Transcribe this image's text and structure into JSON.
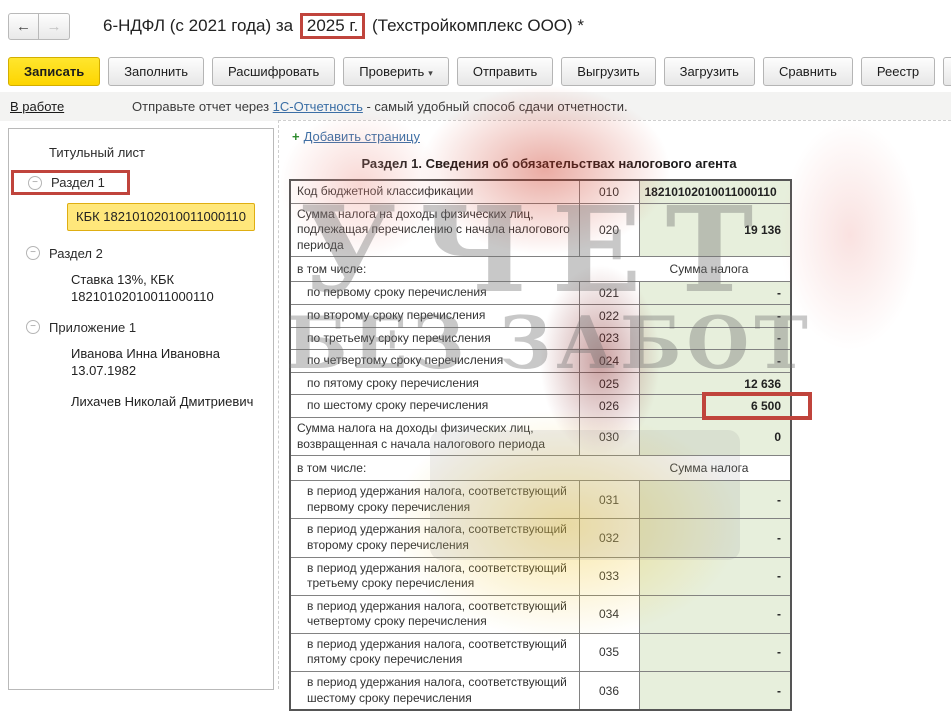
{
  "header": {
    "back_arrow": "←",
    "forward_arrow": "→",
    "title_prefix": "6-НДФЛ (с 2021 года) за",
    "title_year": "2025 г.",
    "title_suffix": "(Техстройкомплекс ООО) *"
  },
  "toolbar": {
    "buttons": [
      {
        "name": "save",
        "label": "Записать",
        "style": "primary"
      },
      {
        "name": "fill",
        "label": "Заполнить"
      },
      {
        "name": "decode",
        "label": "Расшифровать"
      },
      {
        "name": "check",
        "label": "Проверить",
        "dropdown": true
      },
      {
        "name": "send",
        "label": "Отправить"
      },
      {
        "name": "export",
        "label": "Выгрузить"
      },
      {
        "name": "import",
        "label": "Загрузить"
      },
      {
        "name": "compare",
        "label": "Сравнить"
      },
      {
        "name": "register",
        "label": "Реестр"
      },
      {
        "name": "print",
        "icon": "printer-icon"
      }
    ]
  },
  "status_bar": {
    "state_link": "В работе",
    "message_prefix": "Отправьте отчет через ",
    "message_link": "1С-Отчетность",
    "message_suffix": " - самый удобный способ сдачи отчетности."
  },
  "sidebar": {
    "items": [
      {
        "kind": "root",
        "name": "title-page",
        "label": "Титульный лист",
        "toggle": false
      },
      {
        "kind": "root",
        "name": "section-1",
        "label": "Раздел 1",
        "toggle": true,
        "annotated": true
      },
      {
        "kind": "child",
        "name": "kbk-1",
        "lines": [
          "КБК 18210102010011000110"
        ],
        "selected": true
      },
      {
        "kind": "root",
        "name": "section-2",
        "label": "Раздел 2",
        "toggle": true
      },
      {
        "kind": "child",
        "name": "rate-13",
        "lines": [
          "Ставка 13%, КБК",
          "18210102010011000110"
        ]
      },
      {
        "kind": "root",
        "name": "appendix-1",
        "label": "Приложение 1",
        "toggle": true
      },
      {
        "kind": "child",
        "name": "person-1",
        "lines": [
          "Иванова Инна Ивановна",
          "13.07.1982"
        ]
      },
      {
        "kind": "child",
        "name": "person-2",
        "lines": [
          "Лихачев Николай Дмитриевич"
        ]
      }
    ],
    "toggle_glyph": "−"
  },
  "main": {
    "add_page_plus": "+",
    "add_page_label": "Добавить страницу",
    "section_title": "Раздел 1. Сведения об обязательствах налогового агента",
    "table": {
      "sum_header": "Сумма налога",
      "rows": [
        {
          "type": "data",
          "label": "Код бюджетной классификации",
          "code": "010",
          "value": "18210102010011000110",
          "value_align": "left"
        },
        {
          "type": "data",
          "label": "Сумма налога на доходы физических лиц, подлежащая перечислению с начала налогового периода",
          "code": "020",
          "value": "19 136"
        },
        {
          "type": "subheader",
          "label": "в том числе:"
        },
        {
          "type": "data",
          "label": "по первому сроку перечисления",
          "code": "021",
          "value": "-",
          "indent": true
        },
        {
          "type": "data",
          "label": "по второму сроку перечисления",
          "code": "022",
          "value": "-",
          "indent": true
        },
        {
          "type": "data",
          "label": "по третьему сроку перечисления",
          "code": "023",
          "value": "-",
          "indent": true
        },
        {
          "type": "data",
          "label": "по четвертому сроку перечисления",
          "code": "024",
          "value": "-",
          "indent": true
        },
        {
          "type": "data",
          "label": "по пятому сроку перечисления",
          "code": "025",
          "value": "12 636",
          "indent": true
        },
        {
          "type": "data",
          "label": "по шестому сроку перечисления",
          "code": "026",
          "value": "6 500",
          "indent": true,
          "annotated": true
        },
        {
          "type": "data",
          "label": "Сумма налога на доходы физических лиц, возвращенная с начала налогового периода",
          "code": "030",
          "value": "0"
        },
        {
          "type": "subheader",
          "label": "в том числе:"
        },
        {
          "type": "data",
          "label": "в период удержания налога, соответствующий первому сроку перечисления",
          "code": "031",
          "value": "-",
          "indent": true
        },
        {
          "type": "data",
          "label": "в период удержания налога, соответствующий второму сроку перечисления",
          "code": "032",
          "value": "-",
          "indent": true
        },
        {
          "type": "data",
          "label": "в период удержания налога, соответствующий третьему сроку перечисления",
          "code": "033",
          "value": "-",
          "indent": true
        },
        {
          "type": "data",
          "label": "в период удержания налога, соответствующий четвертому сроку перечисления",
          "code": "034",
          "value": "-",
          "indent": true
        },
        {
          "type": "data",
          "label": "в период удержания налога, соответствующий пятому сроку перечисления",
          "code": "035",
          "value": "-",
          "indent": true
        },
        {
          "type": "data",
          "label": "в период удержания налога, соответствующий шестому сроку перечисления",
          "code": "036",
          "value": "-",
          "indent": true
        }
      ]
    }
  },
  "watermark": {
    "line1": "УЧЕТ",
    "line2": "БЕЗ ЗАБОТ"
  },
  "colors": {
    "primary_button_yellow": "#fdd500",
    "selected_item_yellow": "#ffe77b",
    "value_cell_green": "#e7efdc",
    "annotation_red": "#c0443c",
    "link_blue": "#3a6ea5"
  }
}
